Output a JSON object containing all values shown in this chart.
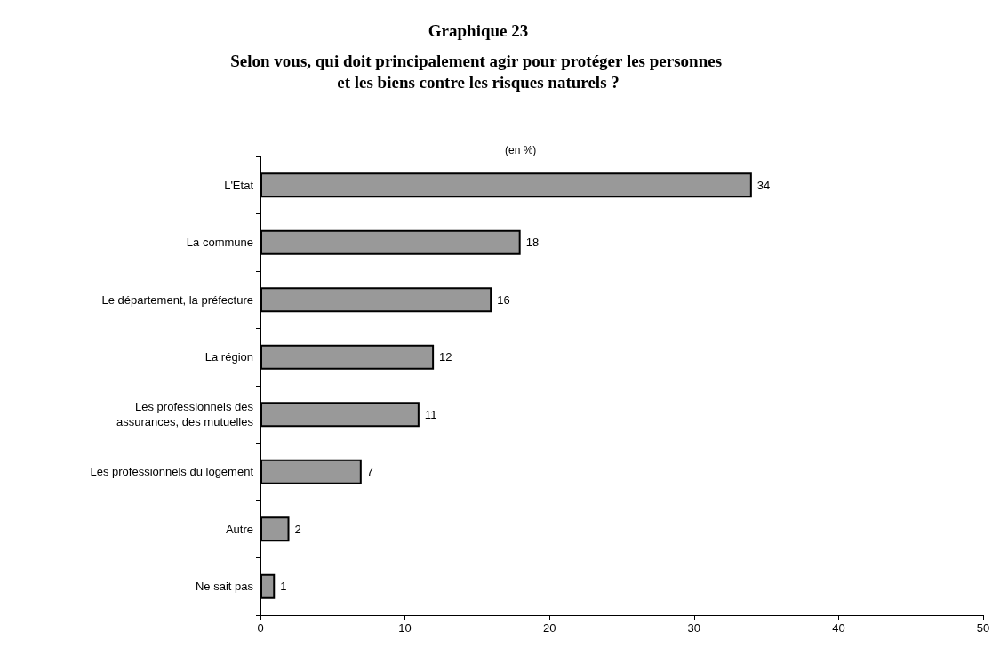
{
  "chart_data": {
    "type": "bar",
    "orientation": "horizontal",
    "title": "Graphique 23",
    "subtitle": "Selon vous, qui doit principalement agir pour protéger les personnes et les biens contre les risques naturels ?",
    "annotations": [
      "(en %)"
    ],
    "categories": [
      "L'Etat",
      "La commune",
      "Le département, la préfecture",
      "La région",
      "Les professionnels des\nassurances, des mutuelles",
      "Les professionnels du logement",
      "Autre",
      "Ne sait pas"
    ],
    "values": [
      34,
      18,
      16,
      12,
      11,
      7,
      2,
      1
    ],
    "color": "#999999",
    "xlim": [
      0,
      50
    ],
    "xticks": [
      0,
      10,
      20,
      30,
      40,
      50
    ],
    "data_labels": true,
    "grid": false
  }
}
